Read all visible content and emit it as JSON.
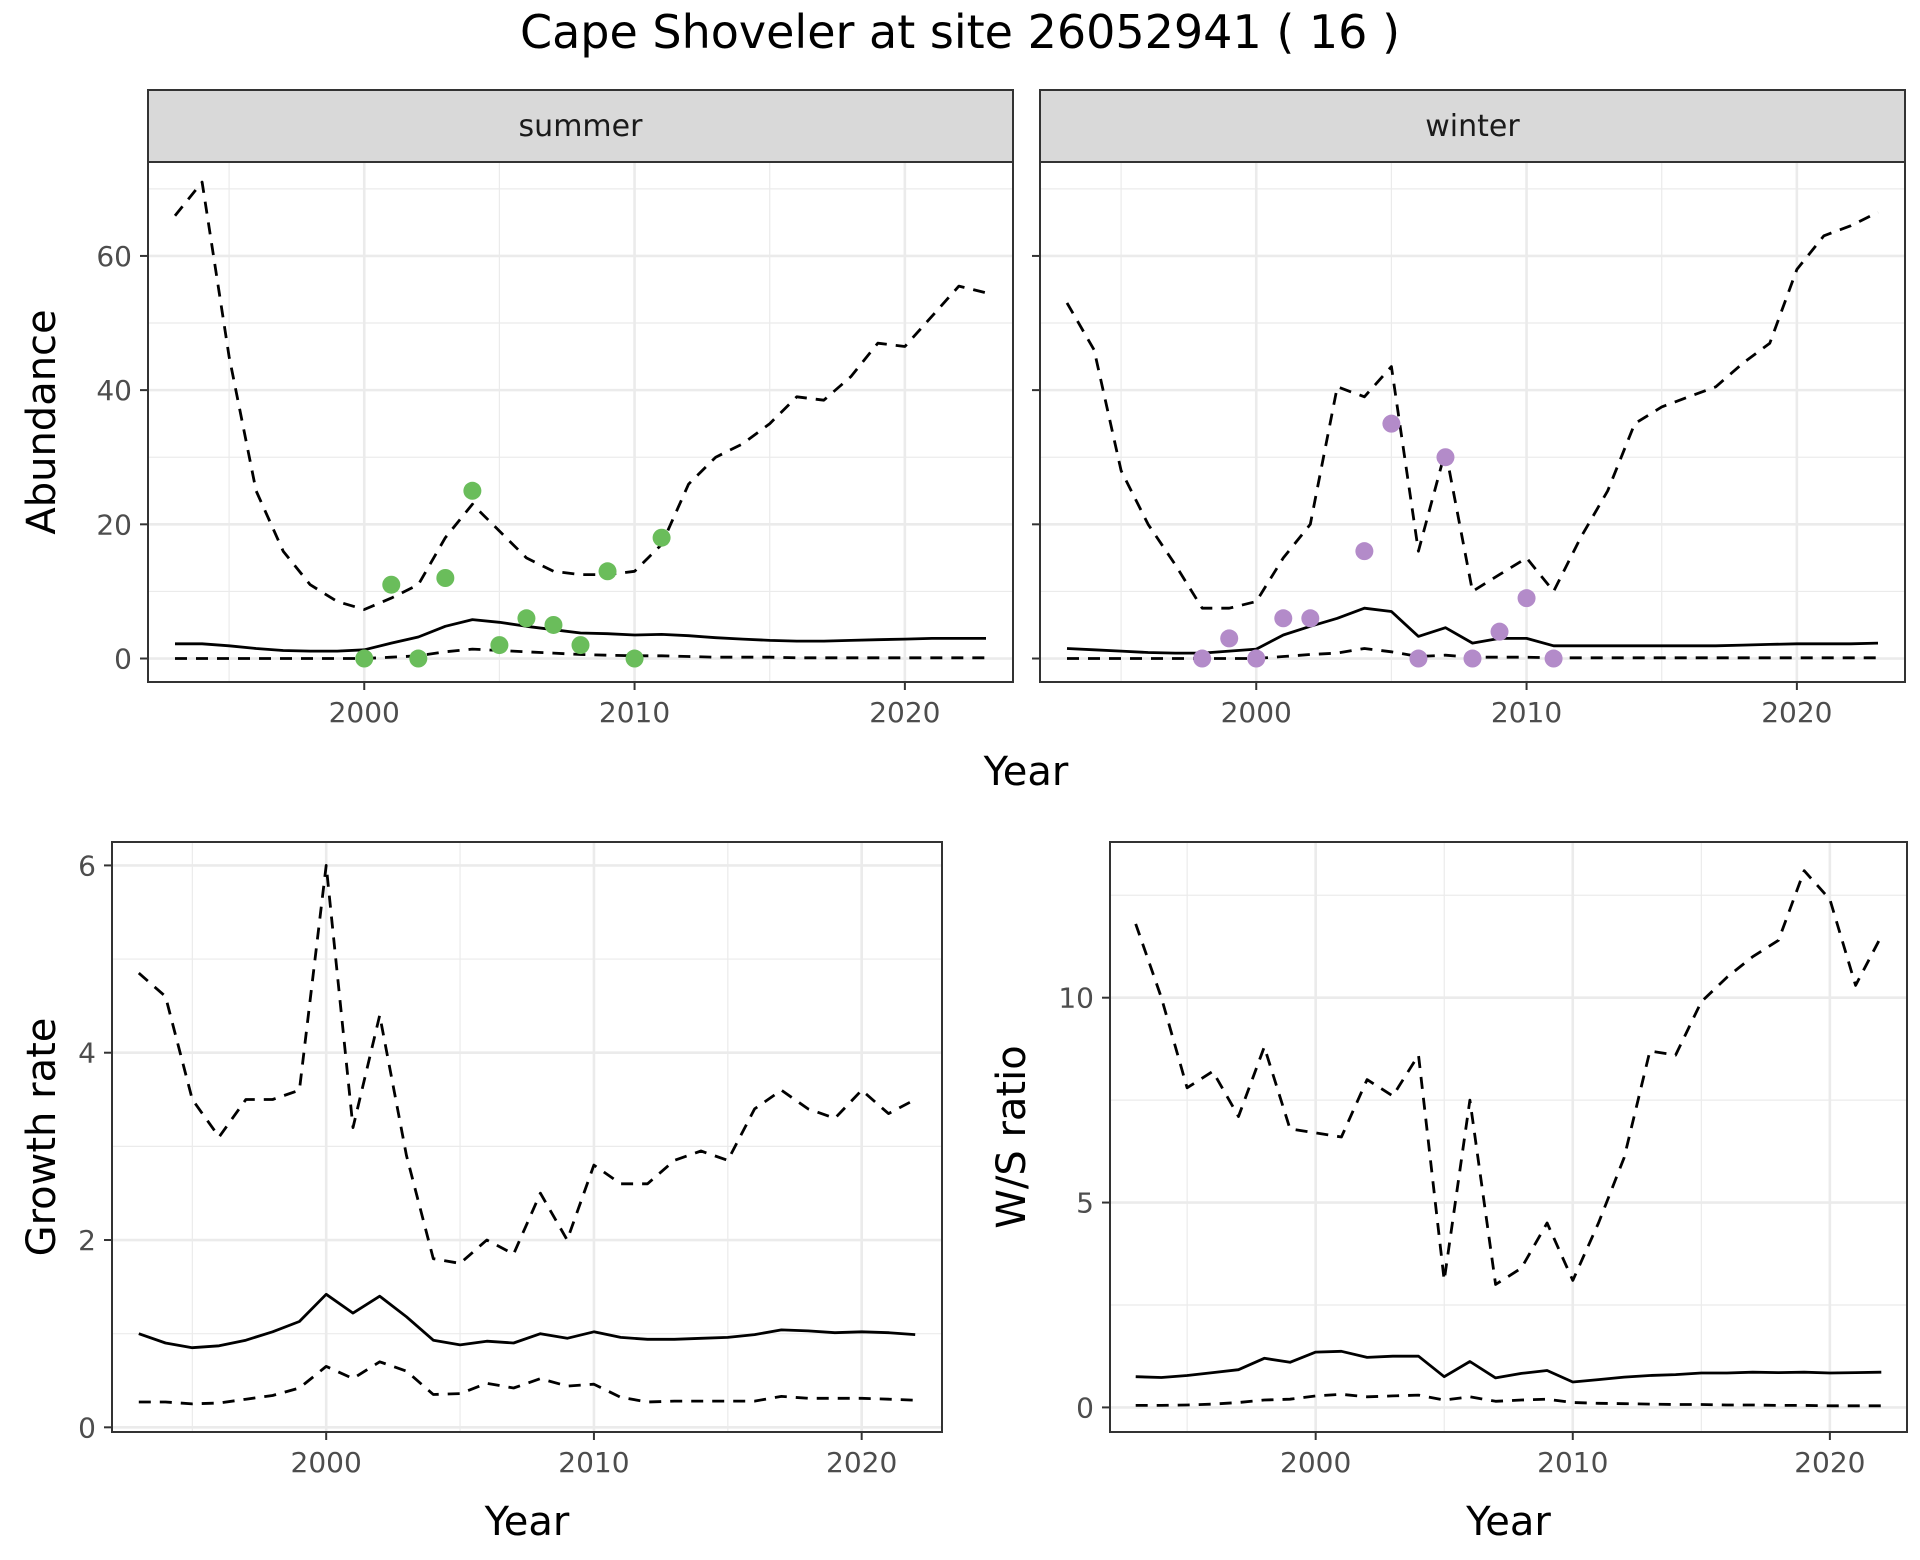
{
  "title": "Cape Shoveler at site 26052941 ( 16 )",
  "colors": {
    "summer_points": "#6abd5b",
    "winter_points": "#b38bc9",
    "lines": "#000000",
    "strip_fill": "#d9d9d9",
    "grid": "#ebebeb"
  },
  "chart_data": [
    {
      "id": "abundance-summer",
      "type": "line",
      "facet": "summer",
      "xlabel": "",
      "ylabel": "Abundance",
      "xlim": [
        1992,
        2024
      ],
      "ylim": [
        -3.5,
        74
      ],
      "xticks": [
        2000,
        2010,
        2020
      ],
      "yticks": [
        0,
        20,
        40,
        60
      ],
      "xtick_labels": [
        "2000",
        "2010",
        "2020"
      ],
      "ytick_labels": [
        "0",
        "20",
        "40",
        "60"
      ],
      "series": [
        {
          "role": "estimate",
          "style": "solid",
          "x": [
            1993,
            1994,
            1995,
            1996,
            1997,
            1998,
            1999,
            2000,
            2001,
            2002,
            2003,
            2004,
            2005,
            2006,
            2007,
            2008,
            2009,
            2010,
            2011,
            2012,
            2013,
            2014,
            2015,
            2016,
            2017,
            2018,
            2019,
            2020,
            2021,
            2022,
            2023
          ],
          "y": [
            2.2,
            2.2,
            1.9,
            1.5,
            1.2,
            1.1,
            1.1,
            1.3,
            2.3,
            3.2,
            4.8,
            5.8,
            5.4,
            4.8,
            4.3,
            3.8,
            3.7,
            3.5,
            3.6,
            3.4,
            3.1,
            2.9,
            2.7,
            2.6,
            2.6,
            2.7,
            2.8,
            2.9,
            3.0,
            3.0,
            3.0
          ]
        },
        {
          "role": "upper",
          "style": "dashed",
          "x": [
            1993,
            1994,
            1995,
            1996,
            1997,
            1998,
            1999,
            2000,
            2001,
            2002,
            2003,
            2004,
            2005,
            2006,
            2007,
            2008,
            2009,
            2010,
            2011,
            2012,
            2013,
            2014,
            2015,
            2016,
            2017,
            2018,
            2019,
            2020,
            2021,
            2022,
            2023
          ],
          "y": [
            66,
            71,
            45,
            25,
            16,
            11,
            8.5,
            7.3,
            9,
            11,
            18,
            23,
            19,
            15,
            13,
            12.5,
            12.5,
            13,
            17,
            26,
            30,
            32,
            35,
            39,
            38.5,
            42,
            47,
            46.5,
            51,
            55.5,
            54.5
          ]
        },
        {
          "role": "lower",
          "style": "dashed",
          "x": [
            1993,
            1994,
            1995,
            1996,
            1997,
            1998,
            1999,
            2000,
            2001,
            2002,
            2003,
            2004,
            2005,
            2006,
            2007,
            2008,
            2009,
            2010,
            2011,
            2012,
            2013,
            2014,
            2015,
            2016,
            2017,
            2018,
            2019,
            2020,
            2021,
            2022,
            2023
          ],
          "y": [
            0,
            0,
            0,
            0,
            0,
            0,
            0,
            0,
            0.2,
            0.4,
            1,
            1.4,
            1.2,
            1,
            0.8,
            0.6,
            0.5,
            0.4,
            0.4,
            0.3,
            0.2,
            0.2,
            0.2,
            0.1,
            0.1,
            0.1,
            0.1,
            0.1,
            0.1,
            0.1,
            0.1
          ]
        }
      ],
      "points": {
        "x": [
          2000,
          2001,
          2002,
          2003,
          2004,
          2005,
          2006,
          2007,
          2008,
          2009,
          2010,
          2011
        ],
        "y": [
          0,
          11,
          0,
          12,
          25,
          2,
          6,
          5,
          2,
          13,
          0,
          18
        ]
      }
    },
    {
      "id": "abundance-winter",
      "type": "line",
      "facet": "winter",
      "xlabel": "",
      "ylabel": "",
      "xlim": [
        1992,
        2024
      ],
      "ylim": [
        -3.5,
        74
      ],
      "xticks": [
        2000,
        2010,
        2020
      ],
      "yticks": [
        0,
        20,
        40,
        60
      ],
      "xtick_labels": [
        "2000",
        "2010",
        "2020"
      ],
      "ytick_labels": [],
      "series": [
        {
          "role": "estimate",
          "style": "solid",
          "x": [
            1993,
            1994,
            1995,
            1996,
            1997,
            1998,
            1999,
            2000,
            2001,
            2002,
            2003,
            2004,
            2005,
            2006,
            2007,
            2008,
            2009,
            2010,
            2011,
            2012,
            2013,
            2014,
            2015,
            2016,
            2017,
            2018,
            2019,
            2020,
            2021,
            2022,
            2023
          ],
          "y": [
            1.5,
            1.3,
            1.1,
            0.9,
            0.8,
            0.8,
            1.1,
            1.4,
            3.5,
            4.8,
            6,
            7.5,
            7,
            3.3,
            4.6,
            2.3,
            3,
            3,
            1.9,
            1.9,
            1.9,
            1.9,
            1.9,
            1.9,
            1.9,
            2,
            2.1,
            2.2,
            2.2,
            2.2,
            2.3
          ]
        },
        {
          "role": "upper",
          "style": "dashed",
          "x": [
            1993,
            1994,
            1995,
            1996,
            1997,
            1998,
            1999,
            2000,
            2001,
            2002,
            2003,
            2004,
            2005,
            2006,
            2007,
            2008,
            2009,
            2010,
            2011,
            2012,
            2013,
            2014,
            2015,
            2016,
            2017,
            2018,
            2019,
            2020,
            2021,
            2022,
            2023
          ],
          "y": [
            53,
            46,
            28,
            20,
            14,
            7.5,
            7.5,
            8.5,
            15,
            20,
            40.5,
            39,
            43.5,
            16,
            31,
            10,
            12.5,
            15,
            10,
            18,
            25,
            35,
            37.5,
            39,
            40.5,
            44,
            47,
            58,
            63,
            64.5,
            66.5
          ]
        },
        {
          "role": "lower",
          "style": "dashed",
          "x": [
            1993,
            1994,
            1995,
            1996,
            1997,
            1998,
            1999,
            2000,
            2001,
            2002,
            2003,
            2004,
            2005,
            2006,
            2007,
            2008,
            2009,
            2010,
            2011,
            2012,
            2013,
            2014,
            2015,
            2016,
            2017,
            2018,
            2019,
            2020,
            2021,
            2022,
            2023
          ],
          "y": [
            0,
            0,
            0,
            0,
            0,
            0,
            0,
            0,
            0.3,
            0.6,
            0.8,
            1.5,
            1,
            0.3,
            0.5,
            0.2,
            0.2,
            0.2,
            0.1,
            0.1,
            0.1,
            0.1,
            0.1,
            0.1,
            0.1,
            0.1,
            0.1,
            0.1,
            0.1,
            0.1,
            0.1
          ]
        }
      ],
      "points": {
        "x": [
          1998,
          1999,
          2000,
          2001,
          2002,
          2004,
          2005,
          2006,
          2007,
          2008,
          2009,
          2010,
          2011
        ],
        "y": [
          0,
          3,
          0,
          6,
          6,
          16,
          35,
          0,
          30,
          0,
          4,
          9,
          0
        ]
      }
    },
    {
      "id": "growth-rate",
      "type": "line",
      "xlabel": "Year",
      "ylabel": "Growth rate",
      "xlim": [
        1992,
        2023
      ],
      "ylim": [
        -0.05,
        6.25
      ],
      "xticks": [
        2000,
        2010,
        2020
      ],
      "yticks": [
        0,
        2,
        4,
        6
      ],
      "xtick_labels": [
        "2000",
        "2010",
        "2020"
      ],
      "ytick_labels": [
        "0",
        "2",
        "4",
        "6"
      ],
      "series": [
        {
          "role": "estimate",
          "style": "solid",
          "x": [
            1993,
            1994,
            1995,
            1996,
            1997,
            1998,
            1999,
            2000,
            2001,
            2002,
            2003,
            2004,
            2005,
            2006,
            2007,
            2008,
            2009,
            2010,
            2011,
            2012,
            2013,
            2014,
            2015,
            2016,
            2017,
            2018,
            2019,
            2020,
            2021,
            2022
          ],
          "y": [
            1,
            0.9,
            0.85,
            0.87,
            0.93,
            1.02,
            1.13,
            1.42,
            1.22,
            1.4,
            1.18,
            0.93,
            0.88,
            0.92,
            0.9,
            1,
            0.95,
            1.02,
            0.96,
            0.94,
            0.94,
            0.95,
            0.96,
            0.99,
            1.04,
            1.03,
            1.01,
            1.02,
            1.01,
            0.99
          ]
        },
        {
          "role": "upper",
          "style": "dashed",
          "x": [
            1993,
            1994,
            1995,
            1996,
            1997,
            1998,
            1999,
            2000,
            2001,
            2002,
            2003,
            2004,
            2005,
            2006,
            2007,
            2008,
            2009,
            2010,
            2011,
            2012,
            2013,
            2014,
            2015,
            2016,
            2017,
            2018,
            2019,
            2020,
            2021,
            2022
          ],
          "y": [
            4.85,
            4.6,
            3.5,
            3.1,
            3.5,
            3.5,
            3.6,
            6,
            3.2,
            4.4,
            2.9,
            1.8,
            1.75,
            2,
            1.85,
            2.5,
            2,
            2.8,
            2.6,
            2.6,
            2.85,
            2.95,
            2.85,
            3.4,
            3.6,
            3.4,
            3.3,
            3.6,
            3.35,
            3.5
          ]
        },
        {
          "role": "lower",
          "style": "dashed",
          "x": [
            1993,
            1994,
            1995,
            1996,
            1997,
            1998,
            1999,
            2000,
            2001,
            2002,
            2003,
            2004,
            2005,
            2006,
            2007,
            2008,
            2009,
            2010,
            2011,
            2012,
            2013,
            2014,
            2015,
            2016,
            2017,
            2018,
            2019,
            2020,
            2021,
            2022
          ],
          "y": [
            0.27,
            0.27,
            0.25,
            0.26,
            0.3,
            0.34,
            0.42,
            0.65,
            0.52,
            0.7,
            0.6,
            0.35,
            0.36,
            0.47,
            0.42,
            0.52,
            0.44,
            0.46,
            0.32,
            0.27,
            0.28,
            0.28,
            0.28,
            0.28,
            0.33,
            0.31,
            0.31,
            0.31,
            0.3,
            0.29
          ]
        }
      ]
    },
    {
      "id": "ws-ratio",
      "type": "line",
      "xlabel": "Year",
      "ylabel": "W/S ratio",
      "xlim": [
        1992,
        2023
      ],
      "ylim": [
        -0.6,
        13.8
      ],
      "xticks": [
        2000,
        2010,
        2020
      ],
      "yticks": [
        0,
        5,
        10
      ],
      "xtick_labels": [
        "2000",
        "2010",
        "2020"
      ],
      "ytick_labels": [
        "0",
        "5",
        "10"
      ],
      "series": [
        {
          "role": "estimate",
          "style": "solid",
          "x": [
            1993,
            1994,
            1995,
            1996,
            1997,
            1998,
            1999,
            2000,
            2001,
            2002,
            2003,
            2004,
            2005,
            2006,
            2007,
            2008,
            2009,
            2010,
            2011,
            2012,
            2013,
            2014,
            2015,
            2016,
            2017,
            2018,
            2019,
            2020,
            2021,
            2022
          ],
          "y": [
            0.75,
            0.73,
            0.78,
            0.85,
            0.92,
            1.2,
            1.1,
            1.35,
            1.37,
            1.22,
            1.25,
            1.25,
            0.75,
            1.12,
            0.72,
            0.83,
            0.9,
            0.62,
            0.68,
            0.74,
            0.78,
            0.8,
            0.84,
            0.84,
            0.86,
            0.85,
            0.86,
            0.84,
            0.85,
            0.86
          ]
        },
        {
          "role": "upper",
          "style": "dashed",
          "x": [
            1993,
            1994,
            1995,
            1996,
            1997,
            1998,
            1999,
            2000,
            2001,
            2002,
            2003,
            2004,
            2005,
            2006,
            2007,
            2008,
            2009,
            2010,
            2011,
            2012,
            2013,
            2014,
            2015,
            2016,
            2017,
            2018,
            2019,
            2020,
            2021,
            2022
          ],
          "y": [
            11.8,
            10,
            7.8,
            8.2,
            7.1,
            8.8,
            6.8,
            6.7,
            6.6,
            8,
            7.6,
            8.6,
            3.1,
            7.5,
            3,
            3.4,
            4.5,
            3.1,
            4.5,
            6.1,
            8.7,
            8.6,
            9.9,
            10.5,
            11,
            11.4,
            13.1,
            12.4,
            10.3,
            11.5
          ]
        },
        {
          "role": "lower",
          "style": "dashed",
          "x": [
            1993,
            1994,
            1995,
            1996,
            1997,
            1998,
            1999,
            2000,
            2001,
            2002,
            2003,
            2004,
            2005,
            2006,
            2007,
            2008,
            2009,
            2010,
            2011,
            2012,
            2013,
            2014,
            2015,
            2016,
            2017,
            2018,
            2019,
            2020,
            2021,
            2022
          ],
          "y": [
            0.05,
            0.05,
            0.06,
            0.08,
            0.12,
            0.18,
            0.2,
            0.28,
            0.32,
            0.26,
            0.28,
            0.3,
            0.18,
            0.26,
            0.15,
            0.18,
            0.2,
            0.12,
            0.1,
            0.09,
            0.08,
            0.07,
            0.07,
            0.06,
            0.06,
            0.05,
            0.05,
            0.04,
            0.04,
            0.04
          ]
        }
      ]
    }
  ],
  "shared_xlabel": "Year",
  "strip_labels": [
    "summer",
    "winter"
  ]
}
